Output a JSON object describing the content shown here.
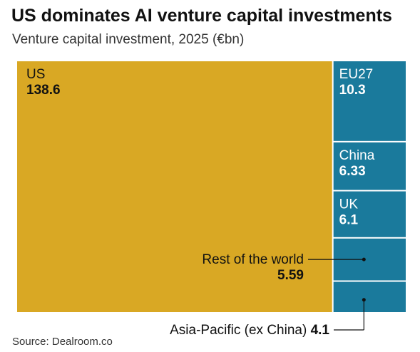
{
  "title": "US dominates AI venture capital investments",
  "subtitle": "Venture capital investment, 2025 (€bn)",
  "source": "Source: Dealroom.co",
  "colors": {
    "us": "#d9a824",
    "others": "#1a7a9c",
    "label_light": "#ffffff",
    "label_dark": "#111111",
    "leader": "#111111"
  },
  "chart_data": {
    "type": "treemap",
    "title": "US dominates AI venture capital investments",
    "subtitle": "Venture capital investment, 2025 (€bn)",
    "unit": "€bn",
    "items": [
      {
        "name": "US",
        "value": 138.6,
        "display_value": "138.6",
        "color": "#d9a824",
        "label": "inside"
      },
      {
        "name": "EU27",
        "value": 10.3,
        "display_value": "10.3",
        "color": "#1a7a9c",
        "label": "inside"
      },
      {
        "name": "China",
        "value": 6.33,
        "display_value": "6.33",
        "color": "#1a7a9c",
        "label": "inside"
      },
      {
        "name": "UK",
        "value": 6.1,
        "display_value": "6.1",
        "color": "#1a7a9c",
        "label": "inside"
      },
      {
        "name": "Rest of the world",
        "value": 5.59,
        "display_value": "5.59",
        "color": "#1a7a9c",
        "label": "callout-left"
      },
      {
        "name": "Asia-Pacific (ex China)",
        "value": 4.1,
        "display_value": "4.1",
        "color": "#1a7a9c",
        "label": "callout-below"
      }
    ]
  }
}
